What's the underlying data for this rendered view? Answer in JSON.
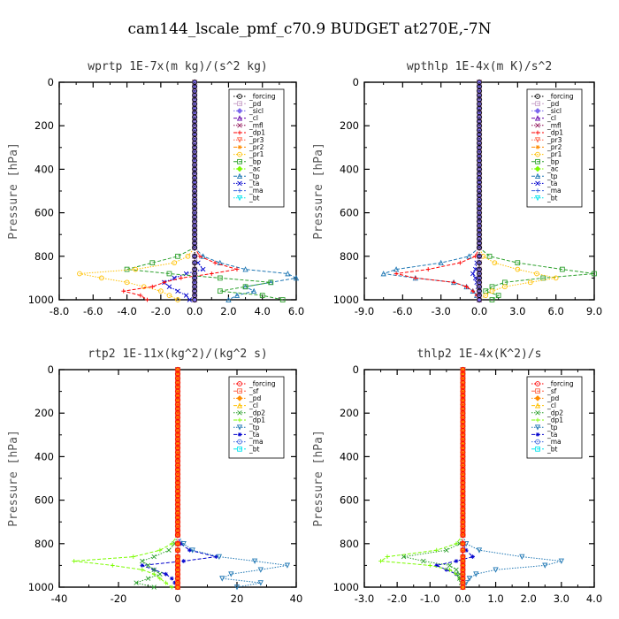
{
  "figure_title": "cam144_lscale_pmf_c70.9  BUDGET at270E,-7N",
  "chart_data": [
    {
      "type": "line",
      "title": "wprtp  1E-7x(m kg)/(s^2 kg)",
      "ylabel": "Pressure [hPa]",
      "xlabel": "",
      "xlim": [
        -8,
        6
      ],
      "ylim": [
        1000,
        0
      ],
      "xticks": [
        "-8.0",
        "-6.0",
        "-4.0",
        "-2.0",
        "0.0",
        "2.0",
        "4.0",
        "6.0"
      ],
      "yticks": [
        "0",
        "200",
        "400",
        "600",
        "800",
        "1000"
      ],
      "legend": "top-right",
      "y": [
        760,
        800,
        830,
        860,
        880,
        900,
        920,
        940,
        960,
        980,
        1000
      ],
      "series": [
        {
          "name": "_forcing",
          "color": "#000000",
          "values": [
            0,
            0,
            0,
            0,
            0,
            0,
            0,
            0,
            0,
            0,
            0
          ]
        },
        {
          "name": "_pd",
          "color": "#c8a2c8",
          "values": [
            0,
            0,
            0,
            0,
            0,
            0,
            0,
            0,
            0,
            0,
            0
          ]
        },
        {
          "name": "_sicl",
          "color": "#7b68ee",
          "values": [
            0,
            0,
            0,
            0,
            0,
            0,
            0,
            0,
            0,
            0,
            0
          ]
        },
        {
          "name": "_cl",
          "color": "#6a0dad",
          "values": [
            0,
            0,
            0,
            0,
            0,
            0,
            0,
            0,
            0,
            0,
            0
          ]
        },
        {
          "name": "_mfl",
          "color": "#8b0a50",
          "values": [
            0,
            0,
            0,
            0,
            0,
            0,
            0,
            0,
            0,
            0,
            0
          ]
        },
        {
          "name": "_dp1",
          "color": "#ff0000",
          "values": [
            0,
            0.3,
            1.2,
            2.5,
            1.0,
            -0.8,
            -1.8,
            -2.5,
            -4.2,
            -3.2,
            -2.8
          ]
        },
        {
          "name": "_pr3",
          "color": "#ff6347",
          "values": [
            0,
            0,
            0,
            0,
            0,
            0,
            0,
            0,
            0,
            0,
            0
          ]
        },
        {
          "name": "_pr2",
          "color": "#ff8c00",
          "values": [
            0,
            0,
            0,
            0,
            0,
            0,
            0,
            0,
            0,
            0,
            0
          ]
        },
        {
          "name": "_pr1",
          "color": "#ffc000",
          "values": [
            0,
            -0.4,
            -1.2,
            -3.5,
            -6.8,
            -5.5,
            -4.0,
            -3.0,
            -2.0,
            -1.5,
            -1.0
          ]
        },
        {
          "name": "_bp",
          "color": "#2ca02c",
          "values": [
            0,
            -1.0,
            -2.5,
            -4.0,
            -1.5,
            1.5,
            4.5,
            3.0,
            1.5,
            4.0,
            5.2
          ]
        },
        {
          "name": "_ac",
          "color": "#7cfc00",
          "values": [
            0,
            0,
            0,
            0,
            0,
            0,
            0,
            0,
            0,
            0,
            0
          ]
        },
        {
          "name": "_tp",
          "color": "#1f77b4",
          "values": [
            0,
            0.5,
            1.5,
            3.0,
            5.5,
            6.0,
            4.5,
            3.0,
            3.5,
            2.5,
            2.0
          ]
        },
        {
          "name": "_ta",
          "color": "#0000cd",
          "values": [
            0,
            0,
            0.2,
            0.5,
            -0.5,
            -1.2,
            -1.8,
            -1.5,
            -1.0,
            -0.5,
            -0.3
          ]
        },
        {
          "name": "_ma",
          "color": "#4169e1",
          "values": [
            0,
            0,
            0,
            0,
            0,
            0,
            0,
            0,
            0,
            0,
            0
          ]
        },
        {
          "name": "_bt",
          "color": "#00e5ee",
          "values": [
            0,
            0,
            0,
            0,
            0,
            0,
            0,
            0,
            0,
            0,
            0
          ]
        }
      ]
    },
    {
      "type": "line",
      "title": "wpthlp  1E-4x(m K)/s^2",
      "ylabel": "Pressure [hPa]",
      "xlabel": "",
      "xlim": [
        -9,
        9
      ],
      "ylim": [
        1000,
        0
      ],
      "xticks": [
        "-9.0",
        "-6.0",
        "-3.0",
        "0.0",
        "3.0",
        "6.0",
        "9.0"
      ],
      "yticks": [
        "0",
        "200",
        "400",
        "600",
        "800",
        "1000"
      ],
      "legend": "top-right",
      "y": [
        760,
        800,
        830,
        860,
        880,
        900,
        920,
        940,
        960,
        980,
        1000
      ],
      "series": [
        {
          "name": "_forcing",
          "color": "#000000",
          "values": [
            0,
            0,
            0,
            0,
            0,
            0,
            0,
            0,
            0,
            0,
            0
          ]
        },
        {
          "name": "_pd",
          "color": "#c8a2c8",
          "values": [
            0,
            0,
            0,
            0,
            0,
            0,
            0,
            0,
            0,
            0,
            0
          ]
        },
        {
          "name": "_sicl",
          "color": "#7b68ee",
          "values": [
            0,
            0,
            0,
            0,
            0,
            0,
            0,
            0,
            0,
            0,
            0
          ]
        },
        {
          "name": "_cl",
          "color": "#6a0dad",
          "values": [
            0,
            0,
            0,
            0,
            0,
            0,
            0,
            0,
            0,
            0,
            0
          ]
        },
        {
          "name": "_mfl",
          "color": "#8b0a50",
          "values": [
            0,
            0,
            0,
            0,
            0,
            0,
            0,
            0,
            0,
            0,
            0
          ]
        },
        {
          "name": "_dp1",
          "color": "#ff0000",
          "values": [
            0,
            -0.3,
            -1.5,
            -4.0,
            -6.5,
            -5.0,
            -2.0,
            -1.0,
            -0.5,
            -0.2,
            0
          ]
        },
        {
          "name": "_pr3",
          "color": "#ff6347",
          "values": [
            0,
            0,
            0,
            0,
            0,
            0,
            0,
            0,
            0,
            0,
            0
          ]
        },
        {
          "name": "_pr2",
          "color": "#ff8c00",
          "values": [
            0,
            0,
            0,
            0,
            0,
            0,
            0,
            0,
            0,
            0,
            0
          ]
        },
        {
          "name": "_pr1",
          "color": "#ffc000",
          "values": [
            0,
            0.3,
            1.2,
            3.0,
            4.5,
            6.0,
            4.0,
            2.0,
            1.0,
            0.5,
            0
          ]
        },
        {
          "name": "_bp",
          "color": "#2ca02c",
          "values": [
            0,
            0.8,
            3.0,
            6.5,
            9.0,
            5.0,
            2.0,
            1.0,
            0.5,
            1.5,
            1.0
          ]
        },
        {
          "name": "_ac",
          "color": "#7cfc00",
          "values": [
            0,
            0,
            0,
            0,
            0,
            0,
            0,
            0,
            0,
            0,
            0
          ]
        },
        {
          "name": "_tp",
          "color": "#1f77b4",
          "values": [
            0,
            -0.8,
            -3.0,
            -6.5,
            -7.5,
            -5.0,
            -2.0,
            -1.0,
            -0.5,
            -0.2,
            0
          ]
        },
        {
          "name": "_ta",
          "color": "#0000cd",
          "values": [
            0,
            0,
            -0.2,
            -0.3,
            -0.5,
            -0.3,
            -0.2,
            -0.1,
            0,
            0,
            0
          ]
        },
        {
          "name": "_ma",
          "color": "#4169e1",
          "values": [
            0,
            0,
            0,
            0,
            0,
            0,
            0,
            0,
            0,
            0,
            0
          ]
        },
        {
          "name": "_bt",
          "color": "#00e5ee",
          "values": [
            0,
            0,
            0,
            0,
            0,
            0,
            0,
            0,
            0,
            0,
            0
          ]
        }
      ]
    },
    {
      "type": "line",
      "title": "rtp2  1E-11x(kg^2)/(kg^2 s)",
      "ylabel": "Pressure [hPa]",
      "xlabel": "",
      "xlim": [
        -40,
        40
      ],
      "ylim": [
        1000,
        0
      ],
      "xticks": [
        "-40",
        "-20",
        "0",
        "20",
        "40"
      ],
      "yticks": [
        "0",
        "200",
        "400",
        "600",
        "800",
        "1000"
      ],
      "legend": "top-right",
      "y": [
        760,
        800,
        830,
        860,
        880,
        900,
        920,
        940,
        960,
        980,
        1000
      ],
      "series": [
        {
          "name": "_forcing",
          "color": "#ff0000",
          "values": [
            0,
            0,
            0,
            0,
            0,
            0,
            0,
            0,
            0,
            0,
            0
          ]
        },
        {
          "name": "_sf",
          "color": "#ff6347",
          "values": [
            0,
            0,
            0,
            0,
            0,
            0,
            0,
            0,
            0,
            0,
            0
          ]
        },
        {
          "name": "_pd",
          "color": "#ff8c00",
          "values": [
            0,
            0,
            0,
            0,
            0,
            0,
            0,
            0,
            0,
            0,
            0
          ]
        },
        {
          "name": "_cl",
          "color": "#ffc000",
          "values": [
            0,
            0,
            0,
            0,
            0,
            0,
            0,
            0,
            0,
            0,
            0
          ]
        },
        {
          "name": "_dp2",
          "color": "#2ca02c",
          "values": [
            0,
            -1.0,
            -3.0,
            -8.0,
            -12.0,
            -10.0,
            -8.0,
            -6.0,
            -10.0,
            -14.0,
            -8.0
          ]
        },
        {
          "name": "_dp1",
          "color": "#7cfc00",
          "values": [
            0,
            -2.0,
            -6.0,
            -15.0,
            -35.0,
            -22.0,
            -12.0,
            -8.0,
            -6.0,
            -4.0,
            -2.0
          ]
        },
        {
          "name": "_tp",
          "color": "#1f77b4",
          "values": [
            0,
            2.0,
            5.0,
            14.0,
            26.0,
            37.0,
            28.0,
            18.0,
            15.0,
            28.0,
            20.0
          ]
        },
        {
          "name": "_ta",
          "color": "#0000cd",
          "values": [
            0,
            1.0,
            4.0,
            13.0,
            2.0,
            -12.0,
            -8.0,
            -4.0,
            -2.0,
            -1.0,
            0
          ]
        },
        {
          "name": "_ma",
          "color": "#4169e1",
          "values": [
            0,
            0,
            0,
            0,
            0,
            0,
            0,
            0,
            0,
            0,
            0
          ]
        },
        {
          "name": "_bt",
          "color": "#00e5ee",
          "values": [
            0,
            0,
            0,
            0,
            0,
            0,
            0,
            0,
            0,
            0,
            0
          ]
        }
      ]
    },
    {
      "type": "line",
      "title": "thlp2  1E-4x(K^2)/s",
      "ylabel": "Pressure [hPa]",
      "xlabel": "",
      "xlim": [
        -3,
        4
      ],
      "ylim": [
        1000,
        0
      ],
      "xticks": [
        "-3.0",
        "-2.0",
        "-1.0",
        "0.0",
        "1.0",
        "2.0",
        "3.0",
        "4.0"
      ],
      "yticks": [
        "0",
        "200",
        "400",
        "600",
        "800",
        "1000"
      ],
      "legend": "top-right",
      "y": [
        760,
        800,
        830,
        860,
        880,
        900,
        920,
        940,
        960,
        980,
        1000
      ],
      "series": [
        {
          "name": "_forcing",
          "color": "#ff0000",
          "values": [
            0,
            0,
            0,
            0,
            0,
            0,
            0,
            0,
            0,
            0,
            0
          ]
        },
        {
          "name": "_sf",
          "color": "#ff6347",
          "values": [
            0,
            0,
            0,
            0,
            0,
            0,
            0,
            0,
            0,
            0,
            0
          ]
        },
        {
          "name": "_pd",
          "color": "#ff8c00",
          "values": [
            0,
            0,
            0,
            0,
            0,
            0,
            0,
            0,
            0,
            0,
            0
          ]
        },
        {
          "name": "_cl",
          "color": "#ffc000",
          "values": [
            0,
            0,
            0,
            0,
            0,
            0,
            0,
            0,
            0,
            0,
            0
          ]
        },
        {
          "name": "_dp2",
          "color": "#2ca02c",
          "values": [
            0,
            -0.1,
            -0.5,
            -1.8,
            -1.2,
            -0.4,
            -0.2,
            -0.1,
            -0.1,
            -0.05,
            0
          ]
        },
        {
          "name": "_dp1",
          "color": "#7cfc00",
          "values": [
            0,
            -0.2,
            -0.8,
            -2.3,
            -2.5,
            -1.0,
            -0.4,
            -0.2,
            -0.1,
            0,
            0
          ]
        },
        {
          "name": "_tp",
          "color": "#1f77b4",
          "values": [
            0,
            0.1,
            0.5,
            1.8,
            3.0,
            2.5,
            1.0,
            0.4,
            0.2,
            0.1,
            0
          ]
        },
        {
          "name": "_ta",
          "color": "#0000cd",
          "values": [
            0,
            0,
            0.1,
            0.3,
            -0.2,
            -0.8,
            -0.5,
            -0.2,
            -0.1,
            0,
            0
          ]
        },
        {
          "name": "_ma",
          "color": "#4169e1",
          "values": [
            0,
            0,
            0,
            0,
            0,
            0,
            0,
            0,
            0,
            0,
            0
          ]
        },
        {
          "name": "_bt",
          "color": "#00e5ee",
          "values": [
            0,
            0,
            0,
            0,
            0,
            0,
            0,
            0,
            0,
            0,
            0
          ]
        }
      ]
    }
  ]
}
